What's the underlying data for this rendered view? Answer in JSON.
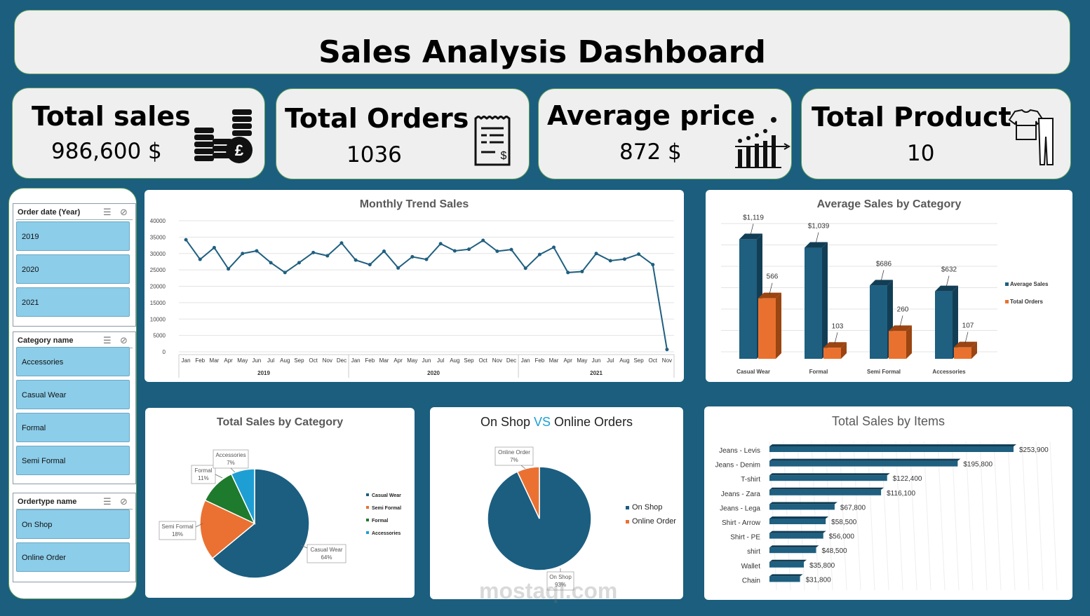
{
  "title": "Sales Analysis Dashboard",
  "kpis": {
    "total_sales": {
      "label": "Total sales",
      "value": "986,600 $"
    },
    "total_orders": {
      "label": "Total Orders",
      "value": "1036"
    },
    "average_price": {
      "label": "Average price",
      "value": "872 $"
    },
    "total_product": {
      "label": "Total Product",
      "value": "10"
    }
  },
  "slicers": {
    "year": {
      "header": "Order date (Year)",
      "items": [
        "2019",
        "2020",
        "2021"
      ]
    },
    "category": {
      "header": "Category name",
      "items": [
        "Accessories",
        "Casual Wear",
        "Formal",
        "Semi Formal"
      ]
    },
    "ordertype": {
      "header": "Ordertype name",
      "items": [
        "On Shop",
        "Online Order"
      ]
    }
  },
  "monthly": {
    "title": "Monthly Trend Sales",
    "chart_data": {
      "type": "line",
      "y_ticks": [
        "40000",
        "35000",
        "30000",
        "25000",
        "20000",
        "15000",
        "10000",
        "5000",
        "0"
      ],
      "ylim": [
        0,
        40000
      ],
      "months": [
        "Jan",
        "Feb",
        "Mar",
        "Apr",
        "May",
        "Jun",
        "Jul",
        "Aug",
        "Sep",
        "Oct",
        "Nov",
        "Dec",
        "Jan",
        "Feb",
        "Mar",
        "Apr",
        "May",
        "Jun",
        "Jul",
        "Aug",
        "Sep",
        "Oct",
        "Nov",
        "Dec",
        "Jan",
        "Feb",
        "Mar",
        "Apr",
        "May",
        "Jun",
        "Jul",
        "Aug",
        "Sep",
        "Oct",
        "Nov"
      ],
      "years": [
        "2019",
        "2020",
        "2021"
      ],
      "values": [
        34200,
        28200,
        31800,
        25300,
        30000,
        30800,
        27200,
        24200,
        27200,
        30300,
        29300,
        33200,
        28000,
        26600,
        30700,
        25600,
        29000,
        28200,
        33000,
        30800,
        31300,
        34000,
        30700,
        31200,
        25500,
        29700,
        31900,
        24200,
        24500,
        30000,
        27800,
        28300,
        29800,
        26600,
        700
      ]
    }
  },
  "avg_by_category": {
    "title": "Average Sales by Category",
    "chart_data": {
      "type": "bar",
      "categories": [
        "Casual Wear",
        "Formal",
        "Semi Formal",
        "Accessories"
      ],
      "series": [
        {
          "name": "Average Sales",
          "values": [
            1119,
            1039,
            686,
            632
          ],
          "labels": [
            "$1,119",
            "$1,039",
            "$686",
            "$632"
          ],
          "color": "#1f5f80"
        },
        {
          "name": "Total Orders",
          "values": [
            566,
            103,
            260,
            107
          ],
          "labels": [
            "566",
            "103",
            "260",
            "107"
          ],
          "color": "#e9712f"
        }
      ]
    }
  },
  "sales_by_category": {
    "title": "Total Sales by Category",
    "chart_data": {
      "type": "pie",
      "slices": [
        {
          "name": "Casual Wear",
          "label": "64%",
          "value": 64,
          "color": "#1b5e80"
        },
        {
          "name": "Semi Formal",
          "label": "18%",
          "value": 18,
          "color": "#ea7132"
        },
        {
          "name": "Formal",
          "label": "11%",
          "value": 11,
          "color": "#1e7a2c"
        },
        {
          "name": "Accessories",
          "label": "7%",
          "value": 7,
          "color": "#1e9fd4"
        }
      ]
    }
  },
  "shop_vs_online": {
    "title_a": "On Shop ",
    "title_vs": "VS",
    "title_b": " Online Orders",
    "chart_data": {
      "type": "pie",
      "slices": [
        {
          "name": "On Shop",
          "label": "93%",
          "value": 93,
          "color": "#1b5e80"
        },
        {
          "name": "Online Order",
          "label": "7%",
          "value": 7,
          "color": "#ea7132"
        }
      ]
    }
  },
  "sales_by_items": {
    "title": "Total Sales by Items",
    "chart_data": {
      "type": "bar",
      "orientation": "horizontal",
      "categories": [
        "Jeans - Levis",
        "Jeans - Denim",
        "T-shirt",
        "Jeans - Zara",
        "Jeans - Lega",
        "Shirt - Arrow",
        "Shirt - PE",
        "shirt",
        "Wallet",
        "Chain"
      ],
      "values": [
        253900,
        195800,
        122400,
        116100,
        67800,
        58500,
        56000,
        48500,
        35800,
        31800
      ],
      "labels": [
        "$253,900",
        "$195,800",
        "$122,400",
        "$116,100",
        "$67,800",
        "$58,500",
        "$56,000",
        "$48,500",
        "$35,800",
        "$31,800"
      ]
    }
  },
  "watermark": {
    "text": "mostaql.com"
  },
  "colors": {
    "background": "#1b5e7e",
    "primary": "#1b5e80",
    "accent": "#ea7132"
  }
}
